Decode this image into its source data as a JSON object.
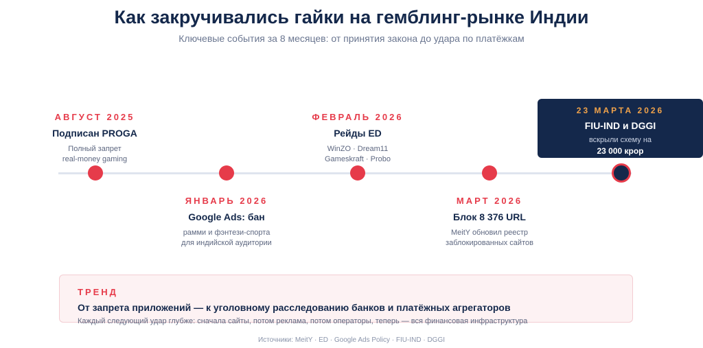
{
  "header": {
    "title": "Как закручивались гайки на гемблинг-рынке Индии",
    "subtitle": "Ключевые события за 8 месяцев: от принятия закона до удара по платёжкам"
  },
  "events": [
    {
      "date": "АВГУСТ 2025",
      "head": "Подписан PROGA",
      "desc": [
        "Полный запрет",
        "real-money gaming"
      ]
    },
    {
      "date": "ЯНВАРЬ 2026",
      "head": "Google Ads: бан",
      "desc": [
        "рамми и фэнтези-спорта",
        "для индийской аудитории"
      ]
    },
    {
      "date": "ФЕВРАЛЬ 2026",
      "head": "Рейды ED",
      "desc": [
        "WinZO · Dream11",
        "Gameskraft · Probo"
      ]
    },
    {
      "date": "МАРТ 2026",
      "head": "Блок 8 376 URL",
      "desc": [
        "MeitY обновил реестр",
        "заблокированных сайтов"
      ]
    },
    {
      "date": "23 МАРТА 2026",
      "head": "FIU-IND и DGGI",
      "desc": [
        "вскрыли схему на",
        "23 000 крор"
      ]
    }
  ],
  "trend": {
    "label": "ТРЕНД",
    "head": "От запрета приложений — к уголовному расследованию банков и платёжных агрегаторов",
    "desc": "Каждый следующий удар глубже: сначала сайты, потом реклама, потом операторы, теперь — вся финансовая инфраструктура"
  },
  "sources": "Источники: MeitY · ED · Google Ads Policy · FIU-IND · DGGI",
  "colors": {
    "accent": "#e63b4a",
    "navy": "#14284b",
    "highlight": "#f0a24a"
  }
}
